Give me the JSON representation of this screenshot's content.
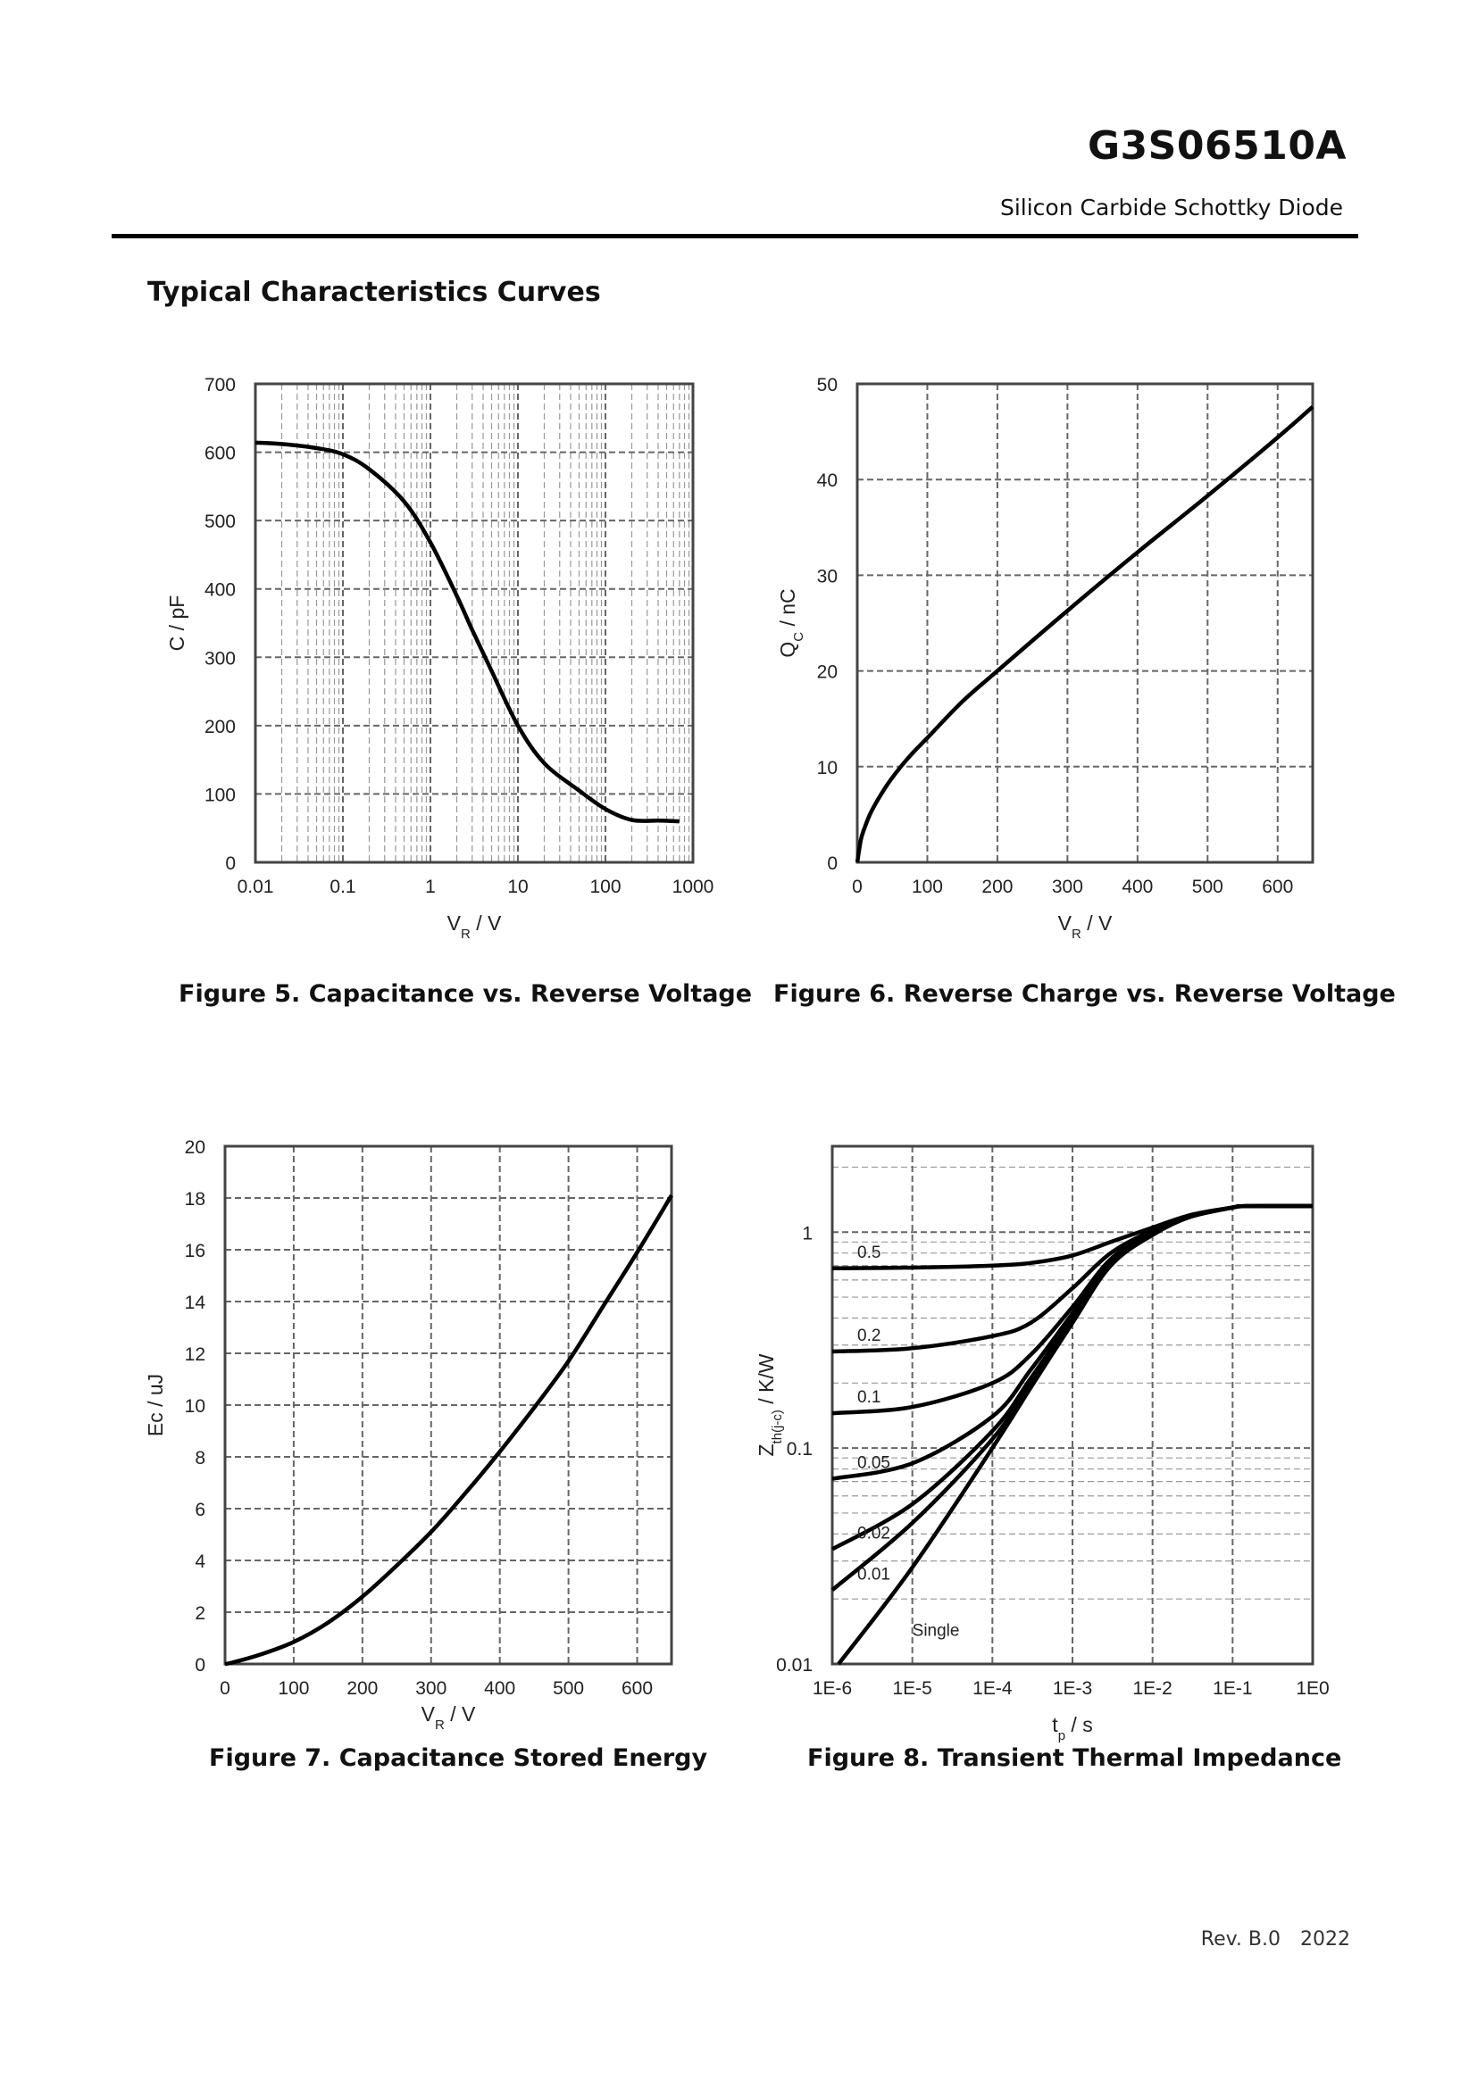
{
  "header": {
    "part_number": "G3S06510A",
    "subtitle": "Silicon Carbide Schottky Diode"
  },
  "section_title": "Typical Characteristics Curves",
  "footer": {
    "rev": "Rev. B.0",
    "year": "2022"
  },
  "figures": [
    {
      "caption": "Figure 5. Capacitance vs. Reverse Voltage"
    },
    {
      "caption": "Figure 6. Reverse Charge vs. Reverse Voltage"
    },
    {
      "caption": "Figure 7. Capacitance Stored Energy"
    },
    {
      "caption": "Figure 8. Transient Thermal Impedance"
    }
  ],
  "chart_data": [
    {
      "type": "line",
      "xlabel": "V_R / V",
      "ylabel": "C / pF",
      "xscale": "log",
      "xlim": [
        0.01,
        1000
      ],
      "ylim": [
        0,
        700
      ],
      "grid": true,
      "xticks": [
        "0.01",
        "0.1",
        "1",
        "10",
        "100",
        "1000"
      ],
      "yticks": [
        "0",
        "100",
        "200",
        "300",
        "400",
        "500",
        "600",
        "700"
      ],
      "series": [
        {
          "x": [
            0.01,
            0.02,
            0.05,
            0.1,
            0.2,
            0.5,
            1,
            2,
            3,
            5,
            10,
            20,
            50,
            100,
            200,
            400,
            700
          ],
          "y": [
            614,
            612,
            606,
            597,
            575,
            528,
            468,
            390,
            340,
            280,
            200,
            145,
            105,
            78,
            62,
            61,
            60
          ]
        }
      ]
    },
    {
      "type": "line",
      "xlabel": "V_R / V",
      "ylabel": "Q_C / nC",
      "xlim": [
        0,
        650
      ],
      "ylim": [
        0,
        50
      ],
      "grid": true,
      "xticks": [
        "0",
        "100",
        "200",
        "300",
        "400",
        "500",
        "600"
      ],
      "yticks": [
        "0",
        "10",
        "20",
        "30",
        "40",
        "50"
      ],
      "series": [
        {
          "x": [
            0,
            5,
            10,
            20,
            40,
            60,
            80,
            100,
            150,
            200,
            300,
            400,
            500,
            600,
            650
          ],
          "y": [
            0,
            2.3,
            3.5,
            5.3,
            7.8,
            9.8,
            11.5,
            13.0,
            16.8,
            20.0,
            26.3,
            32.4,
            38.3,
            44.4,
            47.6
          ]
        }
      ]
    },
    {
      "type": "line",
      "xlabel": "V_R / V",
      "ylabel": "Ec / uJ",
      "xlim": [
        0,
        650
      ],
      "ylim": [
        0,
        20
      ],
      "grid": true,
      "xticks": [
        "0",
        "100",
        "200",
        "300",
        "400",
        "500",
        "600"
      ],
      "yticks": [
        "0",
        "2",
        "4",
        "6",
        "8",
        "10",
        "12",
        "14",
        "16",
        "18",
        "20"
      ],
      "series": [
        {
          "x": [
            0,
            10,
            50,
            100,
            150,
            200,
            250,
            300,
            350,
            400,
            450,
            500,
            550,
            600,
            650
          ],
          "y": [
            0,
            0.05,
            0.35,
            0.85,
            1.6,
            2.6,
            3.8,
            5.1,
            6.6,
            8.2,
            9.9,
            11.7,
            13.8,
            15.9,
            18.1
          ]
        }
      ]
    },
    {
      "type": "line",
      "xlabel": "t_p / s",
      "ylabel": "Z_th(j-c) / K/W",
      "xscale": "log",
      "yscale": "log",
      "xlim": [
        1e-06,
        1
      ],
      "ylim": [
        0.01,
        2.5
      ],
      "grid": true,
      "xticks": [
        "1E-6",
        "1E-5",
        "1E-4",
        "1E-3",
        "1E-2",
        "1E-1",
        "1E0"
      ],
      "yticks": [
        "0.01",
        "0.1",
        "1"
      ],
      "series": [
        {
          "name": "0.5",
          "x": [
            1e-06,
            1e-05,
            0.0001,
            0.0003,
            0.001,
            0.003,
            0.01,
            0.03,
            0.1,
            0.15,
            1
          ],
          "y": [
            0.68,
            0.685,
            0.7,
            0.72,
            0.78,
            0.9,
            1.05,
            1.2,
            1.3,
            1.32,
            1.32
          ]
        },
        {
          "name": "0.2",
          "x": [
            1e-06,
            1e-05,
            0.0001,
            0.0003,
            0.001,
            0.003,
            0.01,
            0.03,
            0.1,
            0.15,
            1
          ],
          "y": [
            0.28,
            0.29,
            0.33,
            0.38,
            0.55,
            0.8,
            1.02,
            1.2,
            1.3,
            1.32,
            1.32
          ]
        },
        {
          "name": "0.1",
          "x": [
            1e-06,
            1e-05,
            0.0001,
            0.0003,
            0.001,
            0.003,
            0.01,
            0.03,
            0.1,
            0.15,
            1
          ],
          "y": [
            0.145,
            0.155,
            0.2,
            0.27,
            0.45,
            0.75,
            1.0,
            1.18,
            1.3,
            1.32,
            1.32
          ]
        },
        {
          "name": "0.05",
          "x": [
            1e-06,
            1e-05,
            0.0001,
            0.0003,
            0.001,
            0.003,
            0.01,
            0.03,
            0.1,
            0.15,
            1
          ],
          "y": [
            0.072,
            0.085,
            0.14,
            0.23,
            0.42,
            0.72,
            0.99,
            1.18,
            1.3,
            1.32,
            1.32
          ]
        },
        {
          "name": "0.02",
          "x": [
            1e-06,
            1e-05,
            0.0001,
            0.0003,
            0.001,
            0.003,
            0.01,
            0.03,
            0.1,
            0.15,
            1
          ],
          "y": [
            0.034,
            0.055,
            0.12,
            0.21,
            0.4,
            0.71,
            0.98,
            1.18,
            1.3,
            1.32,
            1.32
          ]
        },
        {
          "name": "0.01",
          "x": [
            1e-06,
            1e-05,
            0.0001,
            0.0003,
            0.001,
            0.003,
            0.01,
            0.03,
            0.1,
            0.15,
            1
          ],
          "y": [
            0.022,
            0.045,
            0.11,
            0.2,
            0.39,
            0.7,
            0.98,
            1.18,
            1.3,
            1.32,
            1.32
          ]
        },
        {
          "name": "Single",
          "x": [
            1.2e-06,
            1e-05,
            0.0001,
            0.0003,
            0.001,
            0.003,
            0.01,
            0.03,
            0.1,
            0.15,
            1
          ],
          "y": [
            0.01,
            0.028,
            0.1,
            0.19,
            0.38,
            0.7,
            0.97,
            1.18,
            1.3,
            1.32,
            1.32
          ]
        }
      ]
    }
  ]
}
